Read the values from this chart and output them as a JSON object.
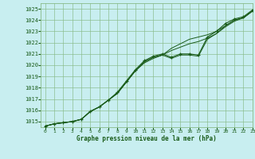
{
  "title": "Graphe pression niveau de la mer (hPa)",
  "bg_color": "#c8eef0",
  "grid_color": "#88bb88",
  "line_color": "#1a5c1a",
  "marker_color": "#1a5c1a",
  "xlim": [
    -0.5,
    23
  ],
  "ylim": [
    1014.5,
    1025.5
  ],
  "yticks": [
    1015,
    1016,
    1017,
    1018,
    1019,
    1020,
    1021,
    1022,
    1023,
    1024,
    1025
  ],
  "xticks": [
    0,
    1,
    2,
    3,
    4,
    5,
    6,
    7,
    8,
    9,
    10,
    11,
    12,
    13,
    14,
    15,
    16,
    17,
    18,
    19,
    20,
    21,
    22,
    23
  ],
  "main_line": [
    1014.6,
    1014.8,
    1014.9,
    1015.0,
    1015.2,
    1015.9,
    1016.3,
    1016.9,
    1017.6,
    1018.6,
    1019.6,
    1020.4,
    1020.8,
    1021.0,
    1020.7,
    1021.0,
    1021.0,
    1020.9,
    1022.5,
    1023.0,
    1023.7,
    1024.1,
    1024.3,
    1024.9
  ],
  "line2": [
    1014.6,
    1014.8,
    1014.9,
    1015.0,
    1015.2,
    1015.9,
    1016.3,
    1016.9,
    1017.5,
    1018.5,
    1019.5,
    1020.3,
    1020.7,
    1020.9,
    1020.6,
    1020.9,
    1020.9,
    1020.8,
    1022.3,
    1022.8,
    1023.5,
    1024.0,
    1024.2,
    1024.8
  ],
  "line3": [
    1014.6,
    1014.8,
    1014.9,
    1015.0,
    1015.2,
    1015.9,
    1016.3,
    1016.9,
    1017.5,
    1018.5,
    1019.5,
    1020.3,
    1020.7,
    1020.9,
    1021.5,
    1021.9,
    1022.3,
    1022.5,
    1022.7,
    1023.0,
    1023.5,
    1024.0,
    1024.2,
    1024.8
  ],
  "line4": [
    1014.6,
    1014.8,
    1014.9,
    1015.0,
    1015.2,
    1015.9,
    1016.3,
    1016.9,
    1017.5,
    1018.5,
    1019.5,
    1020.2,
    1020.6,
    1020.9,
    1021.3,
    1021.6,
    1021.9,
    1022.1,
    1022.4,
    1022.8,
    1023.4,
    1023.9,
    1024.2,
    1024.8
  ]
}
